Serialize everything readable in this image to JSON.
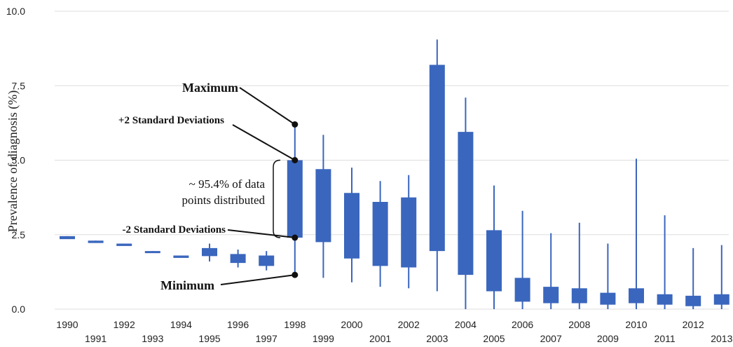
{
  "chart_data": {
    "type": "box",
    "ylabel": "Prevalence of diagnosis (%)",
    "xlabel": "",
    "ylim": [
      0,
      10
    ],
    "y_ticks": [
      "0.0",
      "2.5",
      "5.0",
      "7.5",
      "10.0"
    ],
    "y_tick_values": [
      0,
      2.5,
      5.0,
      7.5,
      10.0
    ],
    "grid": "horizontal",
    "color": "#3a66bd",
    "categories": [
      "1990",
      "1991",
      "1992",
      "1993",
      "1994",
      "1995",
      "1996",
      "1997",
      "1998",
      "1999",
      "2000",
      "2001",
      "2002",
      "2003",
      "2004",
      "2005",
      "2006",
      "2007",
      "2008",
      "2009",
      "2010",
      "2011",
      "2012",
      "2013"
    ],
    "boxes": [
      {
        "year": "1990",
        "min": 2.4,
        "low": 2.35,
        "high": 2.45,
        "max": 2.45
      },
      {
        "year": "1991",
        "min": 2.25,
        "low": 2.22,
        "high": 2.3,
        "max": 2.3
      },
      {
        "year": "1992",
        "min": 2.15,
        "low": 2.12,
        "high": 2.2,
        "max": 2.2
      },
      {
        "year": "1993",
        "min": 1.9,
        "low": 1.88,
        "high": 1.95,
        "max": 1.95
      },
      {
        "year": "1994",
        "min": 1.75,
        "low": 1.72,
        "high": 1.8,
        "max": 1.8
      },
      {
        "year": "1995",
        "min": 1.6,
        "low": 1.78,
        "high": 2.05,
        "max": 2.2
      },
      {
        "year": "1996",
        "min": 1.4,
        "low": 1.55,
        "high": 1.85,
        "max": 2.0
      },
      {
        "year": "1997",
        "min": 1.3,
        "low": 1.45,
        "high": 1.8,
        "max": 1.95
      },
      {
        "year": "1998",
        "min": 1.15,
        "low": 2.4,
        "high": 5.0,
        "max": 6.2
      },
      {
        "year": "1999",
        "min": 1.05,
        "low": 2.25,
        "high": 4.7,
        "max": 5.85
      },
      {
        "year": "2000",
        "min": 0.9,
        "low": 1.7,
        "high": 3.9,
        "max": 4.75
      },
      {
        "year": "2001",
        "min": 0.75,
        "low": 1.45,
        "high": 3.6,
        "max": 4.3
      },
      {
        "year": "2002",
        "min": 0.7,
        "low": 1.4,
        "high": 3.75,
        "max": 4.5
      },
      {
        "year": "2003",
        "min": 0.6,
        "low": 1.95,
        "high": 8.2,
        "max": 9.05
      },
      {
        "year": "2004",
        "min": 0.0,
        "low": 1.15,
        "high": 5.95,
        "max": 7.1
      },
      {
        "year": "2005",
        "min": 0.0,
        "low": 0.6,
        "high": 2.65,
        "max": 4.15
      },
      {
        "year": "2006",
        "min": 0.0,
        "low": 0.25,
        "high": 1.05,
        "max": 3.3
      },
      {
        "year": "2007",
        "min": 0.0,
        "low": 0.2,
        "high": 0.75,
        "max": 2.55
      },
      {
        "year": "2008",
        "min": 0.0,
        "low": 0.2,
        "high": 0.7,
        "max": 2.9
      },
      {
        "year": "2009",
        "min": 0.0,
        "low": 0.15,
        "high": 0.55,
        "max": 2.2
      },
      {
        "year": "2010",
        "min": 0.0,
        "low": 0.2,
        "high": 0.7,
        "max": 5.05
      },
      {
        "year": "2011",
        "min": 0.0,
        "low": 0.15,
        "high": 0.5,
        "max": 3.15
      },
      {
        "year": "2012",
        "min": 0.0,
        "low": 0.1,
        "high": 0.45,
        "max": 2.05
      },
      {
        "year": "2013",
        "min": 0.0,
        "low": 0.15,
        "high": 0.5,
        "max": 2.15
      }
    ],
    "annotations": {
      "maximum": "Maximum",
      "plus2sd": "+2 Standard Deviations",
      "range_line1": "~ 95.4% of data",
      "range_line2": "points distributed",
      "minus2sd": "-2 Standard Deviations",
      "minimum": "Minimum"
    }
  }
}
